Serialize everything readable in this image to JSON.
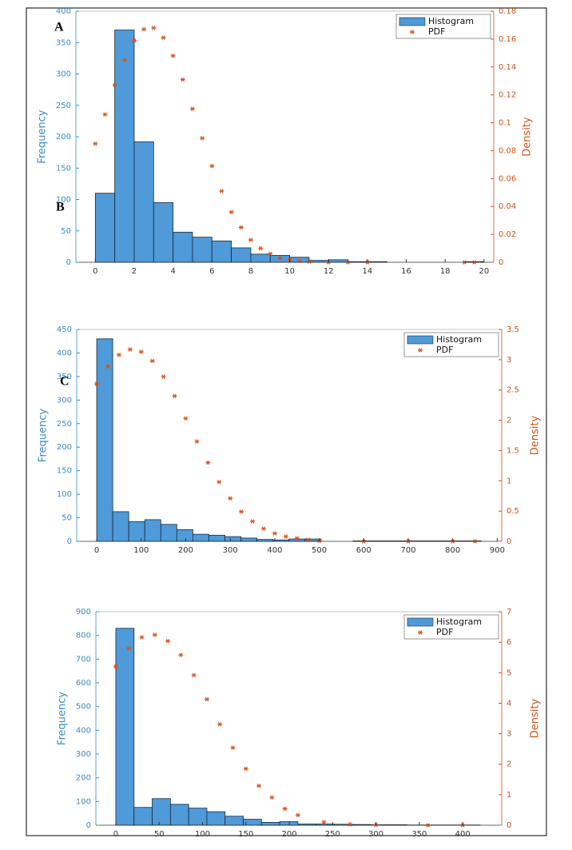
{
  "chart_data": [
    {
      "type": "histogram",
      "ylabel": "Frequency",
      "y2label": "Density",
      "annotations": [
        "A",
        "B"
      ],
      "legend": "upper right",
      "bins": [
        0,
        1,
        2,
        3,
        4,
        5,
        6,
        7,
        8,
        9,
        10,
        11,
        12,
        13,
        14,
        15,
        16,
        17,
        18,
        19,
        20
      ],
      "series": [
        {
          "name": "Histogram",
          "color": "#4f9ad8",
          "values": [
            110,
            370,
            192,
            95,
            48,
            40,
            34,
            23,
            13,
            11,
            8,
            3,
            4,
            1,
            1,
            0,
            0,
            0,
            0,
            1
          ]
        },
        {
          "name": "PDF",
          "color": "#d9541a",
          "axis": "y2",
          "x": [
            0,
            0.5,
            1,
            1.5,
            2,
            2.5,
            3,
            3.5,
            4,
            4.5,
            5,
            5.5,
            6,
            6.5,
            7,
            7.5,
            8,
            8.5,
            9,
            9.5,
            10,
            10.5,
            11,
            12,
            13,
            14,
            19,
            19.5
          ],
          "values": [
            0.085,
            0.106,
            0.127,
            0.145,
            0.159,
            0.167,
            0.168,
            0.161,
            0.148,
            0.131,
            0.11,
            0.089,
            0.069,
            0.051,
            0.036,
            0.025,
            0.016,
            0.01,
            0.006,
            0.003,
            0.002,
            0.001,
            0.0005,
            0,
            0,
            0,
            0,
            0
          ]
        }
      ],
      "xlim": [
        -1,
        20.5
      ],
      "ylim": [
        0,
        400
      ],
      "y2lim": [
        0,
        0.18
      ],
      "xticks": [
        0,
        2,
        4,
        6,
        8,
        10,
        12,
        14,
        16,
        18,
        20
      ],
      "yticks": [
        0,
        50,
        100,
        150,
        200,
        250,
        300,
        350,
        400
      ],
      "y2ticks": [
        0,
        0.02,
        0.04,
        0.06,
        0.08,
        0.1,
        0.12,
        0.14,
        0.16,
        0.18
      ]
    },
    {
      "type": "histogram",
      "ylabel": "Frequency",
      "y2label": "Density",
      "annotations": [
        "C"
      ],
      "legend": "upper right",
      "bins": [
        0,
        36,
        72,
        108,
        144,
        180,
        216,
        252,
        288,
        324,
        360,
        396,
        432,
        468,
        504,
        540,
        576,
        612,
        648,
        684,
        720,
        756,
        792,
        828,
        864
      ],
      "series": [
        {
          "name": "Histogram",
          "color": "#4f9ad8",
          "values": [
            430,
            63,
            42,
            46,
            36,
            25,
            15,
            13,
            10,
            7,
            4,
            3,
            5,
            5,
            0,
            0,
            1,
            1,
            1,
            1,
            1,
            1,
            1,
            1
          ]
        },
        {
          "name": "PDF",
          "color": "#d9541a",
          "axis": "y2",
          "x": [
            0,
            25,
            50,
            75,
            100,
            125,
            150,
            175,
            200,
            225,
            250,
            275,
            300,
            325,
            350,
            375,
            400,
            425,
            450,
            475,
            500,
            600,
            700,
            800,
            850
          ],
          "values": [
            2.6,
            2.89,
            3.08,
            3.17,
            3.13,
            2.98,
            2.72,
            2.4,
            2.03,
            1.65,
            1.3,
            0.98,
            0.71,
            0.49,
            0.33,
            0.21,
            0.13,
            0.08,
            0.05,
            0.025,
            0.01,
            0,
            0,
            0,
            0
          ]
        }
      ],
      "xlim": [
        -45,
        910
      ],
      "ylim": [
        0,
        450
      ],
      "y2lim": [
        0,
        3.5
      ],
      "xticks": [
        0,
        100,
        200,
        300,
        400,
        500,
        600,
        700,
        800,
        900
      ],
      "yticks": [
        0,
        50,
        100,
        150,
        200,
        250,
        300,
        350,
        400,
        450
      ],
      "y2ticks": [
        0,
        0.5,
        1,
        1.5,
        2,
        2.5,
        3,
        3.5
      ]
    },
    {
      "type": "histogram",
      "ylabel": "Frequency",
      "y2label": "Density",
      "annotations": [],
      "legend": "upper right",
      "bins": [
        0,
        21,
        42,
        63,
        84,
        105,
        126,
        147,
        168,
        189,
        210,
        231,
        252,
        273,
        294,
        315,
        336,
        357,
        378,
        399,
        420
      ],
      "series": [
        {
          "name": "Histogram",
          "color": "#4f9ad8",
          "values": [
            830,
            75,
            112,
            88,
            72,
            57,
            38,
            25,
            12,
            15,
            5,
            5,
            4,
            3,
            2,
            2,
            1,
            1,
            1,
            1
          ]
        },
        {
          "name": "PDF",
          "color": "#d9541a",
          "axis": "y2",
          "x": [
            0,
            15,
            30,
            45,
            60,
            75,
            90,
            105,
            120,
            135,
            150,
            165,
            180,
            195,
            210,
            240,
            270,
            300,
            360,
            400
          ],
          "values": [
            5.2,
            5.79,
            6.16,
            6.24,
            6.04,
            5.58,
            4.92,
            4.13,
            3.31,
            2.54,
            1.85,
            1.29,
            0.91,
            0.54,
            0.33,
            0.1,
            0.03,
            0.01,
            0,
            0
          ]
        }
      ],
      "xlim": [
        -23,
        445
      ],
      "ylim": [
        0,
        900
      ],
      "y2lim": [
        0,
        7
      ],
      "xticks": [
        0,
        50,
        100,
        150,
        200,
        250,
        300,
        350,
        400
      ],
      "yticks": [
        0,
        100,
        200,
        300,
        400,
        500,
        600,
        700,
        800,
        900
      ],
      "y2ticks": [
        0,
        1,
        2,
        3,
        4,
        5,
        6,
        7
      ]
    }
  ]
}
